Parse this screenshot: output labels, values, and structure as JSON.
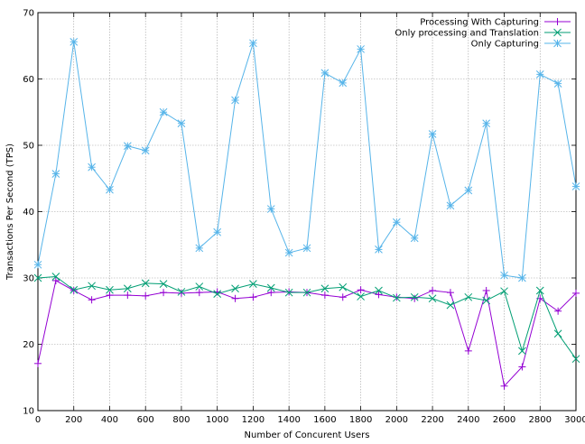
{
  "chart_data": {
    "type": "line",
    "title": "",
    "xlabel": "Number of Concurent Users",
    "ylabel": "Transactions Per Second (TPS)",
    "xlim": [
      0,
      3000
    ],
    "ylim": [
      10,
      70
    ],
    "x_ticks": [
      0,
      200,
      400,
      600,
      800,
      1000,
      1200,
      1400,
      1600,
      1800,
      2000,
      2200,
      2400,
      2600,
      2800,
      3000
    ],
    "y_ticks": [
      10,
      20,
      30,
      40,
      50,
      60,
      70
    ],
    "grid": true,
    "legend_position": "top-right",
    "x": [
      0,
      100,
      200,
      300,
      400,
      500,
      600,
      700,
      800,
      900,
      1000,
      1100,
      1200,
      1300,
      1400,
      1500,
      1600,
      1700,
      1800,
      1900,
      2000,
      2100,
      2200,
      2300,
      2400,
      2500,
      2600,
      2700,
      2800,
      2900,
      3000
    ],
    "series": [
      {
        "name": "Processing With Capturing",
        "color": "#9400d3",
        "marker": "plus",
        "values": [
          17.1,
          29.6,
          28.1,
          26.7,
          27.4,
          27.4,
          27.3,
          27.8,
          27.7,
          27.8,
          27.9,
          26.9,
          27.1,
          27.8,
          27.9,
          27.8,
          27.4,
          27.1,
          28.2,
          27.5,
          27.1,
          26.9,
          28.1,
          27.8,
          19.0,
          28.1,
          13.7,
          16.6,
          26.9,
          25.0,
          27.7
        ]
      },
      {
        "name": "Only processing and Translation",
        "color": "#009e73",
        "marker": "cross",
        "values": [
          30.0,
          30.2,
          28.2,
          28.8,
          28.2,
          28.4,
          29.2,
          29.1,
          27.9,
          28.7,
          27.6,
          28.4,
          29.1,
          28.5,
          27.8,
          27.8,
          28.4,
          28.6,
          27.2,
          28.1,
          27.0,
          27.1,
          26.9,
          25.9,
          27.1,
          26.6,
          28.0,
          19.0,
          28.1,
          21.6,
          17.8
        ]
      },
      {
        "name": "Only Capturing",
        "color": "#56b4e9",
        "marker": "star",
        "values": [
          32.0,
          45.7,
          65.6,
          46.7,
          43.3,
          49.9,
          49.2,
          55.0,
          53.3,
          34.5,
          36.9,
          56.8,
          65.4,
          40.4,
          33.8,
          34.5,
          60.9,
          59.4,
          64.5,
          34.3,
          38.4,
          36.0,
          51.7,
          40.9,
          43.2,
          53.3,
          30.4,
          30.0,
          60.7,
          59.3,
          43.8
        ]
      }
    ]
  }
}
